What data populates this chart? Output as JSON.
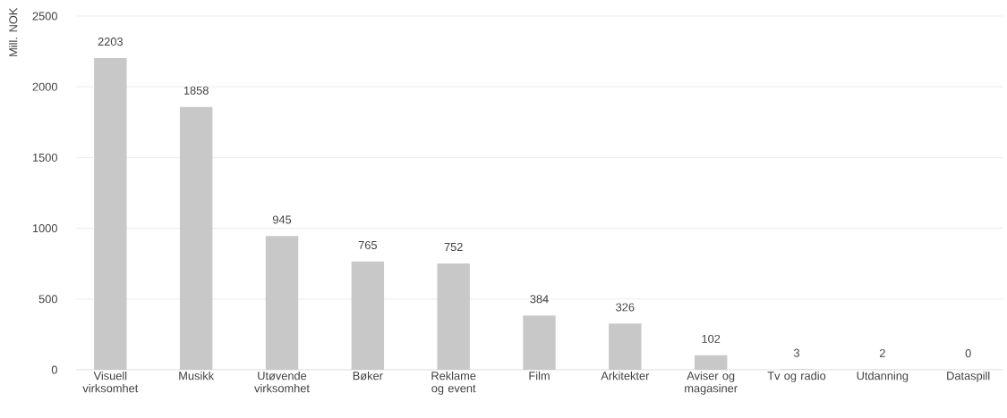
{
  "chart_data": {
    "type": "bar",
    "ylabel": "Mill. NOK",
    "categories": [
      "Visuell virksomhet",
      "Musikk",
      "Utøvende virksomhet",
      "Bøker",
      "Reklame og event",
      "Film",
      "Arkitekter",
      "Aviser og magasiner",
      "Tv og radio",
      "Utdanning",
      "Dataspill"
    ],
    "values": [
      2203,
      1858,
      945,
      765,
      752,
      384,
      326,
      102,
      3,
      2,
      0
    ],
    "color": "#c8c8c8",
    "ylim": [
      0,
      2500
    ],
    "yticks": [
      0,
      500,
      1000,
      1500,
      2000,
      2500
    ],
    "grid": "y",
    "data_labels": true
  }
}
